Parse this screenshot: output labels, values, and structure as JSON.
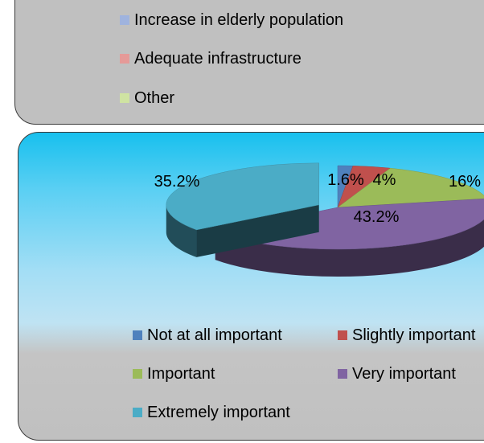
{
  "top_legend": {
    "items": [
      {
        "label": "Increase in elderly population",
        "color": "#9fb3de"
      },
      {
        "label": "Adequate infrastructure",
        "color": "#e59a98"
      },
      {
        "label": "Other",
        "color": "#cfe3a2"
      }
    ]
  },
  "chart_data": {
    "type": "pie",
    "title": "",
    "categories": [
      "Not at all important",
      "Slightly important",
      "Important",
      "Very important",
      "Extremely important"
    ],
    "values": [
      1.6,
      4,
      16,
      43.2,
      35.2
    ],
    "data_labels": [
      "1.6%",
      "4%",
      "16%",
      "43.2%",
      "35.2%"
    ],
    "colors": [
      "#4f81bd",
      "#c0504d",
      "#9bbb59",
      "#8064a2",
      "#4bacc6"
    ],
    "legend_placement": "bottom",
    "legend": {
      "items": [
        {
          "label": "Not at all important"
        },
        {
          "label": "Slightly important"
        },
        {
          "label": "Important"
        },
        {
          "label": "Very important"
        },
        {
          "label": "Extremely important"
        }
      ]
    }
  }
}
